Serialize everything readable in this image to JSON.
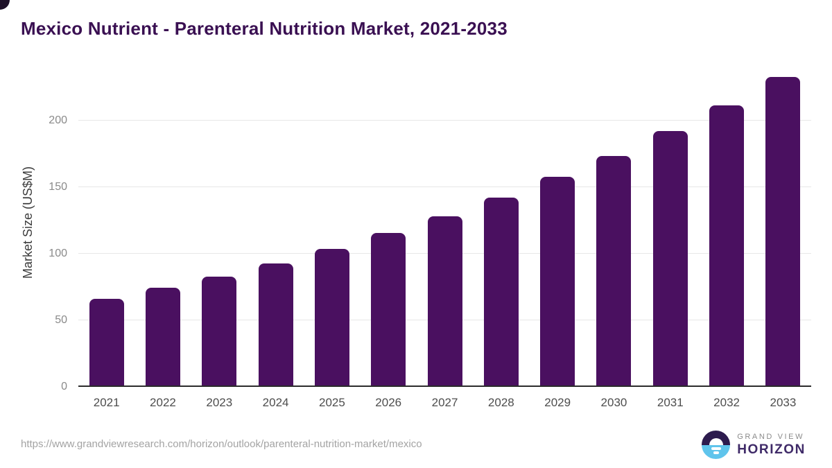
{
  "title": "Mexico Nutrient - Parenteral Nutrition Market, 2021-2033",
  "chart_data": {
    "type": "bar",
    "title": "Mexico Nutrient - Parenteral Nutrition Market, 2021-2033",
    "categories": [
      "2021",
      "2022",
      "2023",
      "2024",
      "2025",
      "2026",
      "2027",
      "2028",
      "2029",
      "2030",
      "2031",
      "2032",
      "2033"
    ],
    "values": [
      66.4,
      74.5,
      83.0,
      92.7,
      103.5,
      115.6,
      128.1,
      142.2,
      157.8,
      173.6,
      192.2,
      211.3,
      232.8
    ],
    "xlabel": "",
    "ylabel": "Market Size (US$M)",
    "ylim": [
      0,
      240
    ],
    "yticks": [
      0,
      50,
      100,
      150,
      200
    ],
    "grid": "horizontal",
    "legend": "none",
    "bar_color": "#4a1060"
  },
  "footer": {
    "source_url": "https://www.grandviewresearch.com/horizon/outlook/parenteral-nutrition-market/mexico",
    "logo": {
      "line1": "GRAND VIEW",
      "line2": "HORIZON"
    }
  },
  "colors": {
    "title": "#3a1052",
    "bar": "#4a1060",
    "gridline": "#e7e7e7",
    "baseline": "#2b2b2b",
    "axis_label": "#3c3c3c",
    "tick_label": "#8a8a8a",
    "x_tick_label": "#4d4d4d",
    "url_text": "#a3a3a3",
    "logo_dark": "#2d1b4e",
    "logo_blue": "#5fc4ec"
  }
}
